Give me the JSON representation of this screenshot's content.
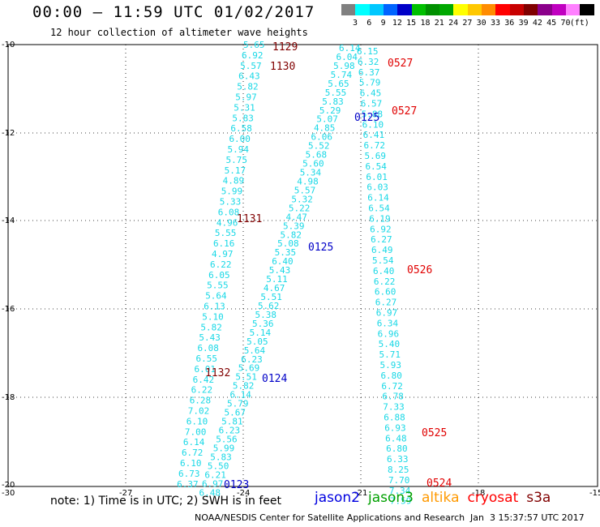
{
  "title": "00:00 – 11:59 UTC 01/02/2017",
  "subtitle": "12 hour collection of altimeter wave heights",
  "colorbar": {
    "colors": [
      "#808080",
      "#00ffff",
      "#00c8ff",
      "#0064ff",
      "#0000c8",
      "#00c000",
      "#009000",
      "#00a800",
      "#ffff00",
      "#ffc800",
      "#ff8c00",
      "#ff0000",
      "#c80000",
      "#800000",
      "#8b008b",
      "#c000c0",
      "#ff80ff",
      "#000000"
    ],
    "labels": [
      "3",
      "6",
      "9",
      "12",
      "15",
      "18",
      "21",
      "24",
      "27",
      "30",
      "33",
      "36",
      "39",
      "42",
      "45",
      "70",
      "(ft)"
    ]
  },
  "axes": {
    "lat_ticks": [
      "-10",
      "-12",
      "-14",
      "-16",
      "-18",
      "-20"
    ],
    "lon_ticks": [
      "-30",
      "-27",
      "-24",
      "-21",
      "-18",
      "-15"
    ]
  },
  "tracks": [
    {
      "x0": 300,
      "y0": 55,
      "dx": -1.95,
      "values": [
        "5.65",
        "6.92",
        "5.57",
        "6.43",
        "5.82",
        "5.97",
        "5.31",
        "5.83",
        "6.58",
        "6.00",
        "5.94",
        "5.75",
        "5.17",
        "4.89",
        "5.99",
        "5.33",
        "6.08",
        "4.96",
        "5.55",
        "6.16",
        "4.97",
        "6.22",
        "6.05",
        "5.55",
        "5.64",
        "6.13",
        "5.10",
        "5.82",
        "5.43",
        "6.08",
        "6.55",
        "6.01",
        "6.42",
        "6.22",
        "6.28",
        "7.02",
        "6.10",
        "7.00",
        "6.14",
        "6.72",
        "6.10",
        "6.73",
        "6.37"
      ]
    },
    {
      "x0": 418,
      "y0": 59,
      "dx": -3.45,
      "values": [
        "6.14",
        "6.04",
        "5.98",
        "5.74",
        "5.65",
        "5.55",
        "5.83",
        "5.29",
        "5.07",
        "4.85",
        "6.06",
        "5.52",
        "5.68",
        "5.60",
        "5.34",
        "4.98",
        "5.57",
        "5.32",
        "5.22",
        "4.47",
        "5.39",
        "5.82",
        "5.08",
        "5.35",
        "6.40",
        "5.43",
        "5.11",
        "4.67",
        "5.51",
        "5.62",
        "5.38",
        "5.36",
        "5.14",
        "5.05",
        "5.64",
        "6.23",
        "5.69",
        "5.51",
        "5.82",
        "6.14",
        "5.79",
        "5.67",
        "5.81",
        "6.23",
        "5.56",
        "5.99",
        "5.83",
        "5.50",
        "6.21",
        "6.97",
        "6.48"
      ]
    },
    {
      "x0": 440,
      "y0": 63,
      "dx": 0.95,
      "values": [
        "6.15",
        "6.32",
        "6.37",
        "5.79",
        "6.45",
        "6.57",
        "5.88",
        "6.10",
        "6.41",
        "6.72",
        "5.69",
        "6.54",
        "6.01",
        "6.03",
        "6.14",
        "6.54",
        "6.19",
        "6.92",
        "6.27",
        "6.49",
        "5.54",
        "6.40",
        "6.22",
        "6.60",
        "6.27",
        "6.97",
        "6.34",
        "6.96",
        "5.40",
        "5.71",
        "5.93",
        "6.80",
        "6.72",
        "6.78",
        "7.33",
        "6.88",
        "6.93",
        "6.48",
        "6.80",
        "6.33",
        "8.25",
        "7.70",
        "7.34",
        "7.59"
      ]
    }
  ],
  "pass_labels": [
    {
      "text": "1129",
      "color": "#800000"
    },
    {
      "text": "1130",
      "color": "#800000"
    },
    {
      "text": "1131",
      "color": "#800000"
    },
    {
      "text": "1132",
      "color": "#800000"
    },
    {
      "text": "0527",
      "color": "#e00000"
    },
    {
      "text": "0527",
      "color": "#e00000"
    },
    {
      "text": "0526",
      "color": "#e00000"
    },
    {
      "text": "0525",
      "color": "#e00000"
    },
    {
      "text": "0524",
      "color": "#e00000"
    },
    {
      "text": "0125",
      "color": "#0000c8"
    },
    {
      "text": "0125",
      "color": "#0000c8"
    },
    {
      "text": "0124",
      "color": "#0000c8"
    },
    {
      "text": "0123",
      "color": "#0000c8"
    }
  ],
  "note": "note: 1) Time is in UTC; 2) SWH is in feet",
  "legend": [
    {
      "label": "jason2",
      "color": "#0000e0"
    },
    {
      "label": "jason3",
      "color": "#00a000"
    },
    {
      "label": "altika",
      "color": "#ff9900"
    },
    {
      "label": "cryosat",
      "color": "#ff0000"
    },
    {
      "label": "s3a",
      "color": "#800000"
    }
  ],
  "footer": "NOAA/NESDIS Center for Satellite Applications and Research",
  "footer_date": "Jan  3 15:37:57 UTC 2017"
}
